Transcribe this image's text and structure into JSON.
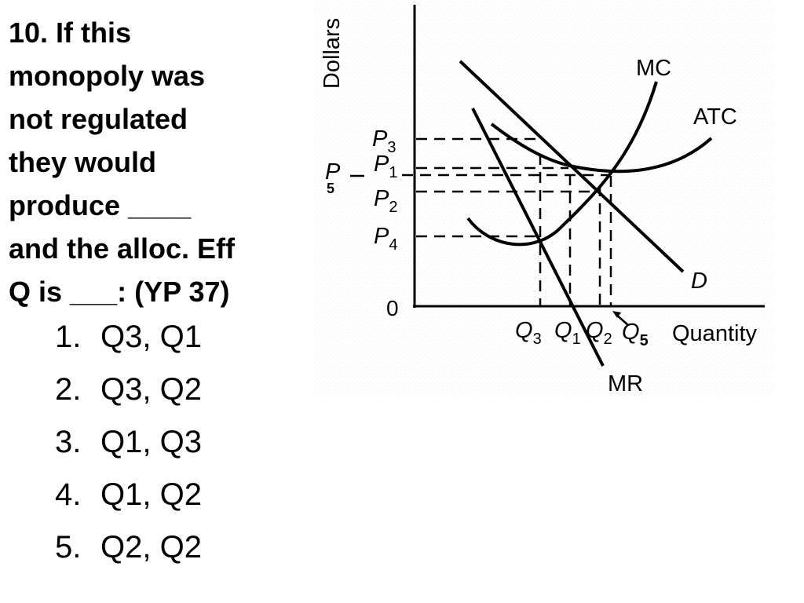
{
  "question": {
    "lines": [
      "10. If this",
      "monopoly was",
      "not regulated",
      "they would",
      "produce ____",
      "and the alloc. Eff",
      "Q is ___: (YP 37)"
    ]
  },
  "options": [
    {
      "number": "1.",
      "text": "Q3, Q1"
    },
    {
      "number": "2.",
      "text": "Q3, Q2"
    },
    {
      "number": "3.",
      "text": "Q1, Q3"
    },
    {
      "number": "4.",
      "text": "Q1, Q2"
    },
    {
      "number": "5.",
      "text": "Q2, Q2"
    }
  ],
  "diagram": {
    "y_axis_label": "Dollars",
    "x_axis_label": "Quantity",
    "origin_label": "0",
    "curves": {
      "mc": "MC",
      "atc": "ATC",
      "demand": "D",
      "mr": "MR"
    },
    "price_labels": {
      "p3": {
        "letter": "P",
        "sub": "3"
      },
      "p1": {
        "letter": "P",
        "sub": "1"
      },
      "p5": {
        "letter": "P",
        "sub": "5"
      },
      "p2": {
        "letter": "P",
        "sub": "2"
      },
      "p4": {
        "letter": "P",
        "sub": "4"
      }
    },
    "quantity_labels": {
      "q3": {
        "letter": "Q",
        "sub": "3"
      },
      "q1": {
        "letter": "Q",
        "sub": "1"
      },
      "q2": {
        "letter": "Q",
        "sub": "2"
      },
      "q5": {
        "letter": "Q",
        "sub": "5"
      }
    },
    "colors": {
      "line": "#000000",
      "background": "#ffffff",
      "texture": "#ececec"
    }
  }
}
